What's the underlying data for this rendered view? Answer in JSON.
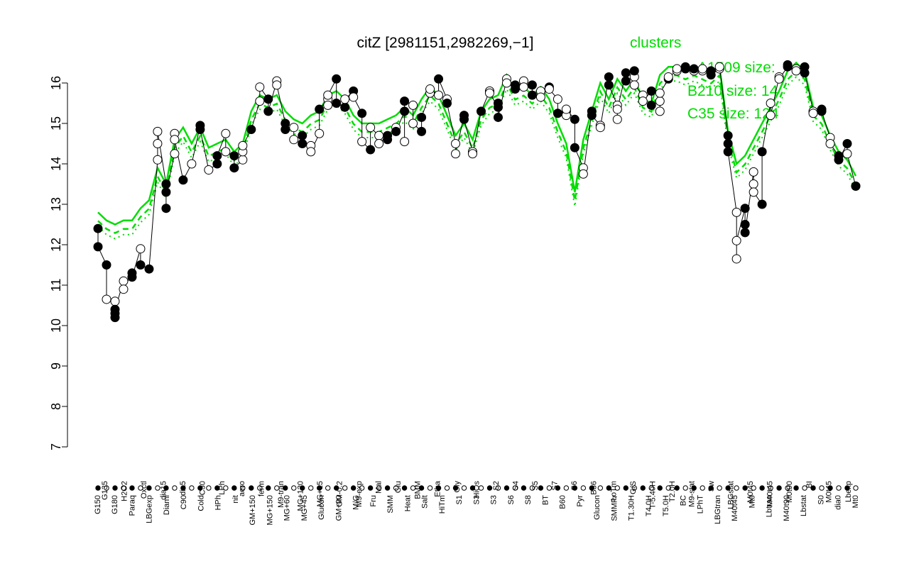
{
  "chart_data": {
    "type": "line",
    "title": "citZ [2981151,2982269,−1]",
    "xlabel": "",
    "ylabel": "",
    "ylim": [
      7,
      16.5
    ],
    "yticks": [
      7,
      8,
      9,
      10,
      11,
      12,
      13,
      14,
      15,
      16
    ],
    "grid": false,
    "legend": {
      "title": "clusters",
      "placement": "top-right",
      "entries": [
        "A1509 size:",
        "B210 size: 14",
        "C35 size: 124"
      ]
    },
    "colors": {
      "series": "#00dd00",
      "points_filled": "#000000",
      "points_open": "#ffffff"
    },
    "categories": [
      "G150",
      "G180",
      "G135",
      "H2O2",
      "Paraq",
      "Oxctl",
      "LBGexp",
      "dia15",
      "Diami",
      "dia5",
      "C90",
      "C30",
      "Cold",
      "LPh",
      "HPh",
      "aero",
      "nit",
      "ferm",
      "GM+150",
      "M9-tran",
      "MG+150",
      "MG+120",
      "MG+90",
      "MG+60",
      "MG+45",
      "MG+30",
      "MG+15",
      "MG-0.2",
      "Glucon",
      "GM-0.2",
      "GM+60",
      "GM+90",
      "GM+120",
      "GM+15",
      "GM+45",
      "GM+30",
      "M9-exp",
      "M/G",
      "Mal",
      "Fru",
      "Glu",
      "SMM",
      "BMM",
      "Heat",
      "Etha",
      "Salt",
      "Gly",
      "HiTm",
      "HiOs",
      "S1",
      "S2",
      "S3",
      "S4",
      "S5",
      "S6",
      "S7",
      "S8",
      "BT",
      "B36",
      "B60",
      "LoTm",
      "Pyr",
      "G/S",
      "Glucon",
      "SMMPr",
      "T-5.40H",
      "T1.30H",
      "T2.0H",
      "T3.30H",
      "T4.0H",
      "T5.0H",
      "M9-stat",
      "BC",
      "Sw",
      "LPhT",
      "LBGstat",
      "LBGtran",
      "M0t45",
      "M40t45",
      "Lbtran",
      "Mt0",
      "M40t90",
      "M0t90",
      "Lbstat",
      "BI",
      "S0",
      "M0t45",
      "dia0",
      "Lbexp",
      "Mt0"
    ],
    "x_tick_labels_top_row": [
      "G135",
      "H2O2",
      "Oxctl",
      "dia15",
      "dia5",
      "C30",
      "LPh",
      "aero",
      "ferm",
      "M9-tran",
      "MG+120",
      "MG+15",
      "GM-0.2",
      "M9-exp",
      "Mal",
      "Glu",
      "BMM",
      "Etha",
      "Gly",
      "HiOs",
      "S2",
      "S4",
      "S5",
      "S7",
      "S6",
      "B36",
      "LoTm",
      "G/S",
      "T-5.40H",
      "T2.0H",
      "M9-stat",
      "Sw",
      "LBGstat",
      "M0t45",
      "M40t45",
      "M0t90",
      "BI",
      "M0t45",
      "Lbexp"
    ],
    "x_tick_labels_bottom_row": [
      "G150",
      "G180",
      "Paraq",
      "LBGexp",
      "Diami",
      "C90",
      "Cold",
      "HPh",
      "nit",
      "GM+150",
      "MG+150",
      "MG+60",
      "MG+45",
      "Glucon",
      "GM+90",
      "M/G",
      "Fru",
      "SMM",
      "Heat",
      "Salt",
      "HiTm",
      "S1",
      "S3",
      "S3",
      "S6",
      "S8",
      "BT",
      "B60",
      "Pyr",
      "Glucon",
      "SMMPr",
      "T1.30H",
      "T4.0H",
      "T5.0H",
      "BC",
      "LPhT",
      "LBGtran",
      "M40t45",
      "Mt0",
      "Lbtran",
      "M40t90",
      "Lbstat",
      "S0",
      "dia0",
      "Mt0"
    ],
    "series": [
      {
        "values": [
          12.8,
          12.6,
          12.5,
          12.6,
          12.6,
          12.9,
          13.1,
          13.9,
          13.5,
          14.6,
          14.9,
          14.5,
          14.9,
          14.4,
          14.5,
          14.6,
          14.3,
          14.5,
          15.3,
          15.7,
          15.6,
          15.7,
          15.3,
          15.1,
          15.0,
          15.2,
          15.3,
          15.7,
          15.8,
          15.6,
          15.2,
          15.0,
          15.0,
          15.0,
          15.1,
          15.2,
          15.4,
          15.2,
          15.6,
          15.9,
          15.7,
          15.2,
          14.7,
          15.0,
          14.6,
          15.3,
          15.6,
          15.7,
          16.2,
          15.8,
          15.9,
          15.7,
          15.9,
          15.6,
          15.0,
          14.5,
          13.3,
          14.6,
          15.3,
          16.0,
          15.6,
          16.1,
          15.8,
          16.1,
          15.6,
          15.5,
          16.2,
          16.4,
          16.4,
          16.3,
          16.4,
          16.3,
          16.2,
          16.4,
          14.8,
          14.0,
          14.2,
          14.6,
          15.0,
          15.4,
          15.8,
          16.3,
          16.5,
          16.3,
          15.4,
          15.2,
          14.7,
          14.3,
          14.1,
          13.7
        ]
      }
    ],
    "points": [
      {
        "x": 0,
        "y": 12.4,
        "filled": true
      },
      {
        "x": 0,
        "y": 11.95,
        "filled": true
      },
      {
        "x": 1,
        "y": 11.5,
        "filled": true
      },
      {
        "x": 1,
        "y": 10.65,
        "filled": false
      },
      {
        "x": 2,
        "y": 10.6,
        "filled": false
      },
      {
        "x": 2,
        "y": 10.2,
        "filled": true
      },
      {
        "x": 2,
        "y": 10.3,
        "filled": true
      },
      {
        "x": 2,
        "y": 10.4,
        "filled": true
      },
      {
        "x": 3,
        "y": 11.1,
        "filled": false
      },
      {
        "x": 3,
        "y": 10.9,
        "filled": false
      },
      {
        "x": 4,
        "y": 11.3,
        "filled": true
      },
      {
        "x": 4,
        "y": 11.2,
        "filled": true
      },
      {
        "x": 5,
        "y": 11.9,
        "filled": false
      },
      {
        "x": 5,
        "y": 11.5,
        "filled": true
      },
      {
        "x": 6,
        "y": 11.4,
        "filled": true
      },
      {
        "x": 7,
        "y": 14.1,
        "filled": false
      },
      {
        "x": 7,
        "y": 14.5,
        "filled": false
      },
      {
        "x": 7,
        "y": 14.8,
        "filled": false
      },
      {
        "x": 8,
        "y": 13.5,
        "filled": true
      },
      {
        "x": 8,
        "y": 12.9,
        "filled": true
      },
      {
        "x": 8,
        "y": 13.3,
        "filled": true
      },
      {
        "x": 9,
        "y": 14.25,
        "filled": false
      },
      {
        "x": 9,
        "y": 14.75,
        "filled": false
      },
      {
        "x": 9,
        "y": 14.6,
        "filled": false
      },
      {
        "x": 10,
        "y": 13.6,
        "filled": true
      },
      {
        "x": 11,
        "y": 14.0,
        "filled": false
      },
      {
        "x": 12,
        "y": 14.95,
        "filled": true
      },
      {
        "x": 12,
        "y": 14.85,
        "filled": true
      },
      {
        "x": 13,
        "y": 13.85,
        "filled": false
      },
      {
        "x": 14,
        "y": 14.0,
        "filled": true
      },
      {
        "x": 14,
        "y": 14.2,
        "filled": true
      },
      {
        "x": 15,
        "y": 14.75,
        "filled": false
      },
      {
        "x": 15,
        "y": 14.3,
        "filled": false
      },
      {
        "x": 16,
        "y": 14.2,
        "filled": true
      },
      {
        "x": 16,
        "y": 13.9,
        "filled": true
      },
      {
        "x": 17,
        "y": 14.1,
        "filled": false
      },
      {
        "x": 17,
        "y": 14.3,
        "filled": false
      },
      {
        "x": 17,
        "y": 14.45,
        "filled": false
      },
      {
        "x": 18,
        "y": 14.85,
        "filled": true
      },
      {
        "x": 19,
        "y": 15.55,
        "filled": false
      },
      {
        "x": 19,
        "y": 15.9,
        "filled": false
      },
      {
        "x": 20,
        "y": 15.6,
        "filled": true
      },
      {
        "x": 20,
        "y": 15.3,
        "filled": true
      },
      {
        "x": 21,
        "y": 16.05,
        "filled": false
      },
      {
        "x": 21,
        "y": 15.95,
        "filled": false
      },
      {
        "x": 22,
        "y": 15.0,
        "filled": true
      },
      {
        "x": 22,
        "y": 14.85,
        "filled": true
      },
      {
        "x": 23,
        "y": 14.9,
        "filled": false
      },
      {
        "x": 23,
        "y": 14.6,
        "filled": false
      },
      {
        "x": 24,
        "y": 14.7,
        "filled": true
      },
      {
        "x": 24,
        "y": 14.5,
        "filled": true
      },
      {
        "x": 25,
        "y": 14.45,
        "filled": false
      },
      {
        "x": 25,
        "y": 14.3,
        "filled": false
      },
      {
        "x": 26,
        "y": 14.75,
        "filled": false
      },
      {
        "x": 26,
        "y": 15.35,
        "filled": true
      },
      {
        "x": 27,
        "y": 15.6,
        "filled": false
      },
      {
        "x": 27,
        "y": 15.45,
        "filled": false
      },
      {
        "x": 27,
        "y": 15.7,
        "filled": false
      },
      {
        "x": 28,
        "y": 16.1,
        "filled": true
      },
      {
        "x": 28,
        "y": 15.5,
        "filled": true
      },
      {
        "x": 29,
        "y": 15.4,
        "filled": true
      },
      {
        "x": 29,
        "y": 15.6,
        "filled": false
      },
      {
        "x": 30,
        "y": 15.8,
        "filled": true
      },
      {
        "x": 30,
        "y": 15.65,
        "filled": false
      },
      {
        "x": 31,
        "y": 15.25,
        "filled": true
      },
      {
        "x": 31,
        "y": 14.55,
        "filled": false
      },
      {
        "x": 32,
        "y": 14.35,
        "filled": true
      },
      {
        "x": 32,
        "y": 14.9,
        "filled": false
      },
      {
        "x": 33,
        "y": 14.7,
        "filled": false
      },
      {
        "x": 33,
        "y": 14.5,
        "filled": false
      },
      {
        "x": 34,
        "y": 14.7,
        "filled": true
      },
      {
        "x": 34,
        "y": 14.6,
        "filled": true
      },
      {
        "x": 35,
        "y": 14.9,
        "filled": false
      },
      {
        "x": 35,
        "y": 14.8,
        "filled": true
      },
      {
        "x": 36,
        "y": 15.3,
        "filled": true
      },
      {
        "x": 36,
        "y": 14.55,
        "filled": false
      },
      {
        "x": 36,
        "y": 15.55,
        "filled": true
      },
      {
        "x": 37,
        "y": 15.45,
        "filled": false
      },
      {
        "x": 37,
        "y": 15.0,
        "filled": false
      },
      {
        "x": 38,
        "y": 14.8,
        "filled": true
      },
      {
        "x": 38,
        "y": 15.15,
        "filled": true
      },
      {
        "x": 39,
        "y": 15.75,
        "filled": false
      },
      {
        "x": 39,
        "y": 15.85,
        "filled": false
      },
      {
        "x": 40,
        "y": 15.7,
        "filled": false
      },
      {
        "x": 40,
        "y": 16.1,
        "filled": true
      },
      {
        "x": 41,
        "y": 15.6,
        "filled": false
      },
      {
        "x": 41,
        "y": 15.5,
        "filled": true
      },
      {
        "x": 42,
        "y": 14.5,
        "filled": false
      },
      {
        "x": 42,
        "y": 14.25,
        "filled": false
      },
      {
        "x": 43,
        "y": 15.2,
        "filled": true
      },
      {
        "x": 43,
        "y": 15.1,
        "filled": true
      },
      {
        "x": 44,
        "y": 14.3,
        "filled": false
      },
      {
        "x": 44,
        "y": 14.25,
        "filled": false
      },
      {
        "x": 45,
        "y": 15.3,
        "filled": true
      },
      {
        "x": 46,
        "y": 15.8,
        "filled": false
      },
      {
        "x": 46,
        "y": 15.75,
        "filled": false
      },
      {
        "x": 47,
        "y": 15.4,
        "filled": true
      },
      {
        "x": 47,
        "y": 15.5,
        "filled": true
      },
      {
        "x": 47,
        "y": 15.15,
        "filled": true
      },
      {
        "x": 48,
        "y": 16.1,
        "filled": false
      },
      {
        "x": 48,
        "y": 16.0,
        "filled": false
      },
      {
        "x": 49,
        "y": 15.95,
        "filled": true
      },
      {
        "x": 49,
        "y": 15.85,
        "filled": true
      },
      {
        "x": 50,
        "y": 16.05,
        "filled": false
      },
      {
        "x": 50,
        "y": 15.9,
        "filled": false
      },
      {
        "x": 51,
        "y": 15.95,
        "filled": true
      },
      {
        "x": 51,
        "y": 15.7,
        "filled": true
      },
      {
        "x": 52,
        "y": 15.8,
        "filled": false
      },
      {
        "x": 52,
        "y": 15.65,
        "filled": false
      },
      {
        "x": 53,
        "y": 15.9,
        "filled": true
      },
      {
        "x": 53,
        "y": 15.85,
        "filled": false
      },
      {
        "x": 54,
        "y": 15.6,
        "filled": false
      },
      {
        "x": 54,
        "y": 15.25,
        "filled": true
      },
      {
        "x": 55,
        "y": 15.3,
        "filled": true
      },
      {
        "x": 55,
        "y": 15.2,
        "filled": false
      },
      {
        "x": 55,
        "y": 15.35,
        "filled": false
      },
      {
        "x": 56,
        "y": 15.1,
        "filled": true
      },
      {
        "x": 56,
        "y": 14.4,
        "filled": true
      },
      {
        "x": 57,
        "y": 13.9,
        "filled": false
      },
      {
        "x": 57,
        "y": 13.75,
        "filled": false
      },
      {
        "x": 58,
        "y": 15.3,
        "filled": true
      },
      {
        "x": 58,
        "y": 15.2,
        "filled": true
      },
      {
        "x": 59,
        "y": 14.95,
        "filled": false
      },
      {
        "x": 59,
        "y": 14.9,
        "filled": false
      },
      {
        "x": 60,
        "y": 16.15,
        "filled": true
      },
      {
        "x": 60,
        "y": 15.95,
        "filled": true
      },
      {
        "x": 61,
        "y": 15.45,
        "filled": false
      },
      {
        "x": 61,
        "y": 15.1,
        "filled": false
      },
      {
        "x": 61,
        "y": 15.35,
        "filled": false
      },
      {
        "x": 62,
        "y": 16.25,
        "filled": true
      },
      {
        "x": 62,
        "y": 16.05,
        "filled": true
      },
      {
        "x": 63,
        "y": 16.15,
        "filled": false
      },
      {
        "x": 63,
        "y": 16.3,
        "filled": true
      },
      {
        "x": 63,
        "y": 15.95,
        "filled": false
      },
      {
        "x": 64,
        "y": 15.7,
        "filled": false
      },
      {
        "x": 64,
        "y": 15.55,
        "filled": false
      },
      {
        "x": 65,
        "y": 15.8,
        "filled": true
      },
      {
        "x": 65,
        "y": 15.45,
        "filled": true
      },
      {
        "x": 66,
        "y": 15.55,
        "filled": false
      },
      {
        "x": 66,
        "y": 15.3,
        "filled": false
      },
      {
        "x": 66,
        "y": 15.75,
        "filled": false
      },
      {
        "x": 67,
        "y": 16.1,
        "filled": true
      },
      {
        "x": 67,
        "y": 16.15,
        "filled": false
      },
      {
        "x": 68,
        "y": 16.3,
        "filled": false
      },
      {
        "x": 68,
        "y": 16.35,
        "filled": false
      },
      {
        "x": 69,
        "y": 16.4,
        "filled": true
      },
      {
        "x": 69,
        "y": 16.35,
        "filled": true
      },
      {
        "x": 70,
        "y": 16.3,
        "filled": false
      },
      {
        "x": 70,
        "y": 16.35,
        "filled": true
      },
      {
        "x": 71,
        "y": 16.3,
        "filled": false
      },
      {
        "x": 71,
        "y": 16.35,
        "filled": false
      },
      {
        "x": 72,
        "y": 16.3,
        "filled": true
      },
      {
        "x": 72,
        "y": 16.2,
        "filled": true
      },
      {
        "x": 73,
        "y": 16.35,
        "filled": false
      },
      {
        "x": 73,
        "y": 16.4,
        "filled": false
      },
      {
        "x": 74,
        "y": 14.7,
        "filled": true
      },
      {
        "x": 74,
        "y": 14.5,
        "filled": true
      },
      {
        "x": 74,
        "y": 14.3,
        "filled": true
      },
      {
        "x": 75,
        "y": 12.8,
        "filled": false
      },
      {
        "x": 75,
        "y": 11.65,
        "filled": false
      },
      {
        "x": 75,
        "y": 12.1,
        "filled": false
      },
      {
        "x": 76,
        "y": 12.9,
        "filled": true
      },
      {
        "x": 76,
        "y": 12.5,
        "filled": true
      },
      {
        "x": 76,
        "y": 12.3,
        "filled": true
      },
      {
        "x": 77,
        "y": 13.8,
        "filled": false
      },
      {
        "x": 77,
        "y": 13.5,
        "filled": false
      },
      {
        "x": 77,
        "y": 13.3,
        "filled": false
      },
      {
        "x": 78,
        "y": 13.0,
        "filled": true
      },
      {
        "x": 78,
        "y": 14.3,
        "filled": true
      },
      {
        "x": 79,
        "y": 15.5,
        "filled": false
      },
      {
        "x": 79,
        "y": 15.2,
        "filled": false
      },
      {
        "x": 80,
        "y": 16.15,
        "filled": false
      },
      {
        "x": 80,
        "y": 16.1,
        "filled": false
      },
      {
        "x": 81,
        "y": 16.4,
        "filled": true
      },
      {
        "x": 81,
        "y": 16.45,
        "filled": true
      },
      {
        "x": 82,
        "y": 16.35,
        "filled": false
      },
      {
        "x": 82,
        "y": 16.3,
        "filled": false
      },
      {
        "x": 83,
        "y": 16.4,
        "filled": true
      },
      {
        "x": 83,
        "y": 16.25,
        "filled": true
      },
      {
        "x": 84,
        "y": 15.3,
        "filled": false
      },
      {
        "x": 84,
        "y": 15.25,
        "filled": false
      },
      {
        "x": 85,
        "y": 15.35,
        "filled": true
      },
      {
        "x": 85,
        "y": 15.3,
        "filled": true
      },
      {
        "x": 86,
        "y": 14.65,
        "filled": false
      },
      {
        "x": 86,
        "y": 14.5,
        "filled": false
      },
      {
        "x": 87,
        "y": 14.2,
        "filled": true
      },
      {
        "x": 87,
        "y": 14.1,
        "filled": true
      },
      {
        "x": 88,
        "y": 14.5,
        "filled": true
      },
      {
        "x": 88,
        "y": 14.25,
        "filled": false
      },
      {
        "x": 89,
        "y": 13.45,
        "filled": true
      },
      {
        "x": 89,
        "y": 13.45,
        "filled": true
      }
    ]
  }
}
